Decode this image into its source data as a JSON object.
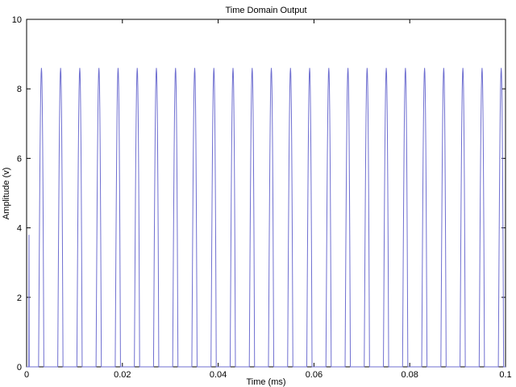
{
  "chart_data": {
    "type": "line",
    "title": "Time Domain Output",
    "xlabel": "Time (ms)",
    "ylabel": "Amplitude (v)",
    "xlim": [
      0,
      0.1
    ],
    "ylim": [
      0,
      10
    ],
    "x_ticks": [
      0,
      0.02,
      0.04,
      0.06,
      0.08,
      0.1
    ],
    "x_tick_labels": [
      "0",
      "0.02",
      "0.04",
      "0.06",
      "0.08",
      "0.1"
    ],
    "y_ticks": [
      0,
      2,
      4,
      6,
      8,
      10
    ],
    "y_tick_labels": [
      "0",
      "2",
      "4",
      "6",
      "8",
      "10"
    ],
    "grid": false,
    "legend": "none",
    "line_color": "#6f6fd0",
    "series": [
      {
        "initial_spike": {
          "t": 0.0005,
          "peak": 3.8
        },
        "pulse_period": 0.004,
        "first_pulse_start": 0.0025,
        "pulse_count": 25,
        "pulse_rise": 0.0006,
        "pulse_decay": 0.0005,
        "peak": 8.6,
        "baseline": 0
      }
    ]
  }
}
